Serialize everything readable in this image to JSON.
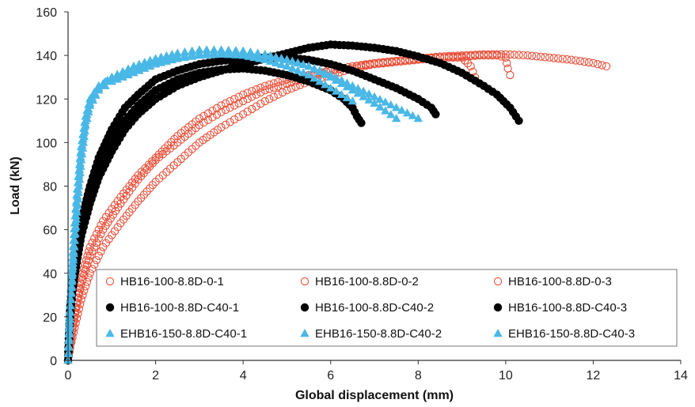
{
  "chart_data": {
    "type": "scatter",
    "title": "",
    "xlabel": "Global displacement (mm)",
    "ylabel": "Load (kN)",
    "xlim": [
      0,
      14
    ],
    "ylim": [
      0,
      160
    ],
    "xticks": [
      0,
      2,
      4,
      6,
      8,
      10,
      12,
      14
    ],
    "yticks": [
      0,
      20,
      40,
      60,
      80,
      100,
      120,
      140,
      160
    ],
    "grid": false,
    "legend_position": "bottom-right",
    "colors": {
      "hollow": "#e8503a",
      "black": "#000000",
      "cyan": "#4ab8e6"
    },
    "series": [
      {
        "name": "HB16-100-8.8D-0-1",
        "marker": "hollow-circle",
        "color": "#e8503a",
        "x": [
          0,
          0.05,
          0.15,
          0.3,
          0.5,
          0.8,
          1.2,
          1.6,
          2.0,
          2.5,
          3.0,
          3.5,
          4.0,
          4.5,
          5.0,
          5.5,
          6.0,
          6.5,
          7.0,
          7.5,
          8.0,
          8.5,
          9.0,
          9.5,
          9.8,
          10.0,
          10.05,
          10.1
        ],
        "y": [
          0,
          8,
          20,
          35,
          48,
          60,
          72,
          83,
          92,
          100,
          108,
          114,
          119,
          124,
          127,
          130,
          133,
          135,
          136,
          137,
          138,
          139,
          139.5,
          140,
          140,
          139,
          134,
          131
        ]
      },
      {
        "name": "HB16-100-8.8D-0-2",
        "marker": "hollow-circle",
        "color": "#e8503a",
        "x": [
          0,
          0.05,
          0.15,
          0.3,
          0.5,
          0.8,
          1.2,
          1.6,
          2.0,
          2.5,
          3.0,
          3.5,
          4.0,
          4.5,
          5.0,
          5.5,
          6.0,
          6.5,
          7.0,
          7.5,
          8.0,
          8.5,
          9.0,
          9.5,
          10.0,
          10.5,
          11.0,
          11.5,
          12.0,
          12.3
        ],
        "y": [
          0,
          6,
          15,
          28,
          40,
          52,
          63,
          73,
          82,
          91,
          100,
          107,
          113,
          119,
          124,
          128,
          131,
          134,
          136,
          137.5,
          138.5,
          139.5,
          140,
          140.5,
          140.5,
          140,
          139,
          138,
          136.5,
          135
        ]
      },
      {
        "name": "HB16-100-8.8D-0-3",
        "marker": "hollow-circle",
        "color": "#e8503a",
        "x": [
          0,
          0.05,
          0.15,
          0.3,
          0.5,
          0.8,
          1.2,
          1.6,
          2.0,
          2.5,
          3.0,
          3.5,
          4.0,
          4.5,
          5.0,
          5.5,
          6.0,
          6.5,
          7.0,
          7.5,
          8.0,
          8.5,
          9.0,
          9.2,
          9.3
        ],
        "y": [
          0,
          9,
          22,
          38,
          52,
          64,
          75,
          85,
          93,
          103,
          111,
          117,
          122,
          126,
          129,
          131,
          133,
          135,
          136.5,
          137.5,
          138.5,
          139,
          139,
          135,
          130
        ]
      },
      {
        "name": "HB16-100-8.8D-C40-1",
        "marker": "filled-circle",
        "color": "#000000",
        "x": [
          0,
          0.02,
          0.05,
          0.1,
          0.2,
          0.3,
          0.5,
          0.7,
          1.0,
          1.3,
          1.6,
          2.0,
          2.5,
          3.0,
          3.5,
          4.0,
          4.5,
          5.0,
          5.5,
          6.0,
          6.3,
          6.5,
          6.6,
          6.7
        ],
        "y": [
          0,
          10,
          22,
          35,
          50,
          62,
          78,
          90,
          101,
          110,
          117,
          124,
          129,
          132,
          133.5,
          134,
          133,
          131,
          128,
          124,
          120,
          116,
          112,
          109
        ]
      },
      {
        "name": "HB16-100-8.8D-C40-2",
        "marker": "filled-circle",
        "color": "#000000",
        "x": [
          0,
          0.02,
          0.05,
          0.1,
          0.2,
          0.3,
          0.5,
          0.7,
          1.0,
          1.3,
          1.6,
          2.0,
          2.5,
          3.0,
          3.5,
          4.0,
          4.5,
          5.0,
          5.5,
          6.0,
          6.5,
          7.0,
          7.5,
          8.0,
          8.3,
          8.4
        ],
        "y": [
          0,
          12,
          25,
          38,
          52,
          64,
          80,
          93,
          106,
          116,
          122,
          129,
          133,
          136,
          137.5,
          138.5,
          139,
          139,
          138,
          136,
          133,
          129,
          125,
          120,
          116,
          113
        ]
      },
      {
        "name": "HB16-100-8.8D-C40-3",
        "marker": "filled-circle",
        "color": "#000000",
        "x": [
          0,
          0.02,
          0.05,
          0.1,
          0.2,
          0.3,
          0.5,
          0.7,
          1.0,
          1.3,
          1.6,
          2.0,
          2.5,
          3.0,
          3.5,
          4.0,
          4.5,
          5.0,
          5.5,
          6.0,
          6.5,
          7.0,
          7.5,
          8.0,
          8.5,
          9.0,
          9.5,
          9.8,
          10.1,
          10.3
        ],
        "y": [
          0,
          8,
          20,
          32,
          45,
          57,
          72,
          84,
          96,
          106,
          113,
          120,
          126,
          130,
          133,
          136,
          138.5,
          141,
          143.5,
          145,
          144.5,
          143.5,
          142,
          139.5,
          136.5,
          132,
          126,
          122,
          116,
          110
        ]
      },
      {
        "name": "EHB16-150-8.8D-C40-1",
        "marker": "filled-triangle",
        "color": "#4ab8e6",
        "x": [
          0,
          0.02,
          0.05,
          0.1,
          0.15,
          0.2,
          0.25,
          0.3,
          0.4,
          0.5,
          0.6,
          0.8,
          1.0,
          1.5,
          2.0,
          2.5,
          3.0,
          3.5,
          4.0,
          4.5,
          5.0,
          5.5,
          6.0,
          6.5,
          7.0,
          7.5,
          8.0
        ],
        "y": [
          0,
          10,
          25,
          42,
          58,
          72,
          85,
          96,
          110,
          118,
          123,
          127,
          130,
          134,
          137,
          139.5,
          141,
          141.5,
          141,
          140,
          138,
          135,
          131,
          126,
          121,
          116,
          111
        ]
      },
      {
        "name": "EHB16-150-8.8D-C40-2",
        "marker": "filled-triangle",
        "color": "#4ab8e6",
        "x": [
          0,
          0.02,
          0.05,
          0.1,
          0.15,
          0.2,
          0.3,
          0.4,
          0.5,
          0.7,
          1.0,
          1.5,
          2.0,
          2.5,
          3.0,
          3.5,
          4.0,
          4.5,
          5.0,
          5.5,
          6.0,
          6.5,
          7.0,
          7.5
        ],
        "y": [
          0,
          12,
          28,
          47,
          63,
          76,
          98,
          112,
          120,
          126,
          130,
          135,
          138.5,
          141,
          142.5,
          142.5,
          142,
          140.5,
          138,
          135,
          130,
          124,
          118,
          111
        ]
      },
      {
        "name": "EHB16-150-8.8D-C40-3",
        "marker": "filled-triangle",
        "color": "#4ab8e6",
        "x": [
          0,
          0.02,
          0.05,
          0.1,
          0.15,
          0.2,
          0.3,
          0.4,
          0.5,
          0.7,
          1.0,
          1.5,
          2.0,
          2.5,
          3.0,
          3.5,
          4.0,
          4.5,
          5.0,
          5.5,
          6.0,
          6.5
        ],
        "y": [
          0,
          9,
          22,
          40,
          55,
          68,
          92,
          108,
          117,
          124,
          128,
          132,
          136,
          138.5,
          140,
          140.5,
          140,
          138,
          135,
          131,
          125,
          119
        ]
      }
    ]
  }
}
